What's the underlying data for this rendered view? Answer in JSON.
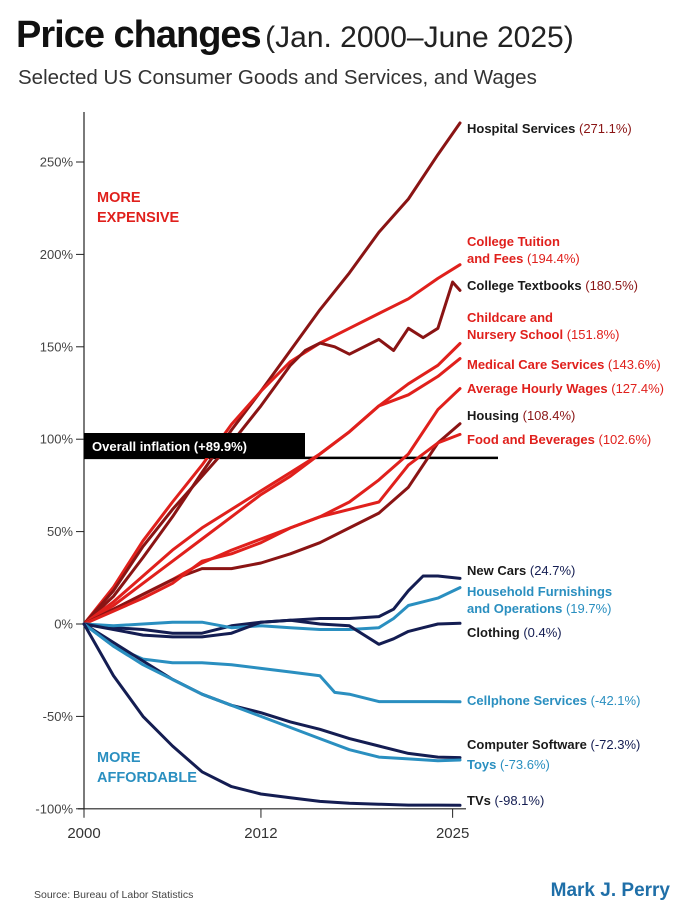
{
  "header": {
    "title": "Price changes",
    "title_period": "(Jan. 2000–June 2025)",
    "subtitle": "Selected US Consumer Goods and Services, and Wages"
  },
  "footer": {
    "source": "Source:  Bureau of Labor Statistics",
    "brand": "Mark J. Perry"
  },
  "colors": {
    "bright_red": "#e0201c",
    "dark_red": "#8a1414",
    "navy": "#141d52",
    "light_blue": "#2a8fc0",
    "axis": "#222222"
  },
  "chart_data": {
    "type": "line",
    "x_range": [
      2000,
      2025.5
    ],
    "xticks": [
      2000,
      2012,
      2025
    ],
    "ylim": [
      -100,
      280
    ],
    "yticks": [
      -100,
      -50,
      0,
      50,
      100,
      150,
      200,
      250
    ],
    "ytick_labels": [
      "-100%",
      "-50%",
      "0%",
      "50%",
      "100%",
      "150%",
      "200%",
      "250%"
    ],
    "grid": false,
    "annotations": {
      "more_expensive": [
        "MORE",
        "EXPENSIVE"
      ],
      "more_affordable": [
        "MORE",
        "AFFORDABLE"
      ],
      "overall_inflation_label": "Overall inflation (+89.9%)",
      "overall_inflation_value": 89.9
    },
    "series": [
      {
        "name": "Hospital Services",
        "value_label": "(271.1%)",
        "color": "dark_red",
        "x": [
          2000,
          2002,
          2004,
          2006,
          2008,
          2010,
          2012,
          2014,
          2016,
          2018,
          2020,
          2022,
          2024,
          2025.5
        ],
        "y": [
          0,
          15,
          36,
          58,
          82,
          105,
          126,
          148,
          170,
          190,
          212,
          230,
          254,
          271.1
        ]
      },
      {
        "name": "College Tuition and Fees",
        "value_label": "(194.4%)",
        "color": "bright_red",
        "x": [
          2000,
          2002,
          2004,
          2006,
          2008,
          2010,
          2012,
          2014,
          2016,
          2018,
          2020,
          2022,
          2024,
          2025.5
        ],
        "y": [
          0,
          20,
          45,
          66,
          86,
          108,
          126,
          142,
          152,
          160,
          168,
          176,
          187,
          194.4
        ]
      },
      {
        "name": "College Textbooks",
        "value_label": "(180.5%)",
        "color": "dark_red",
        "x": [
          2000,
          2002,
          2004,
          2006,
          2008,
          2010,
          2012,
          2014,
          2015,
          2016,
          2017,
          2018,
          2020,
          2021,
          2022,
          2023,
          2024,
          2025,
          2025.5
        ],
        "y": [
          0,
          18,
          42,
          62,
          80,
          98,
          118,
          140,
          148,
          152,
          150,
          146,
          154,
          148,
          160,
          155,
          160,
          185,
          180.5
        ]
      },
      {
        "name": "Childcare and Nursery School",
        "value_label": "(151.8%)",
        "color": "bright_red",
        "x": [
          2000,
          2002,
          2004,
          2006,
          2008,
          2010,
          2012,
          2014,
          2016,
          2018,
          2020,
          2022,
          2024,
          2025.5
        ],
        "y": [
          0,
          12,
          26,
          40,
          52,
          62,
          72,
          82,
          92,
          104,
          118,
          130,
          140,
          151.8
        ]
      },
      {
        "name": "Medical Care Services",
        "value_label": "(143.6%)",
        "color": "bright_red",
        "x": [
          2000,
          2002,
          2004,
          2006,
          2008,
          2010,
          2012,
          2014,
          2016,
          2018,
          2020,
          2022,
          2024,
          2025.5
        ],
        "y": [
          0,
          10,
          22,
          34,
          46,
          58,
          70,
          80,
          92,
          104,
          118,
          124,
          134,
          143.6
        ]
      },
      {
        "name": "Average Hourly Wages",
        "value_label": "(127.4%)",
        "color": "bright_red",
        "x": [
          2000,
          2002,
          2004,
          2006,
          2008,
          2010,
          2012,
          2014,
          2016,
          2018,
          2020,
          2022,
          2024,
          2025.5
        ],
        "y": [
          0,
          8,
          16,
          24,
          33,
          40,
          46,
          52,
          58,
          66,
          78,
          92,
          116,
          127.4
        ]
      },
      {
        "name": "Housing",
        "value_label": "(108.4%)",
        "color": "dark_red",
        "x": [
          2000,
          2002,
          2004,
          2006,
          2008,
          2010,
          2012,
          2014,
          2016,
          2018,
          2020,
          2022,
          2024,
          2025.5
        ],
        "y": [
          0,
          8,
          16,
          24,
          30,
          30,
          33,
          38,
          44,
          52,
          60,
          74,
          98,
          108.4
        ]
      },
      {
        "name": "Food and Beverages",
        "value_label": "(102.6%)",
        "color": "bright_red",
        "x": [
          2000,
          2002,
          2004,
          2006,
          2008,
          2010,
          2012,
          2014,
          2016,
          2018,
          2020,
          2022,
          2024,
          2025.5
        ],
        "y": [
          0,
          7,
          14,
          22,
          34,
          38,
          44,
          52,
          58,
          62,
          66,
          86,
          98,
          102.6
        ]
      },
      {
        "name": "New Cars",
        "value_label": "(24.7%)",
        "color": "navy",
        "x": [
          2000,
          2002,
          2004,
          2006,
          2008,
          2010,
          2012,
          2014,
          2016,
          2018,
          2020,
          2021,
          2022,
          2023,
          2024,
          2025.5
        ],
        "y": [
          0,
          -2,
          -3,
          -5,
          -5,
          -1,
          1,
          2,
          3,
          3,
          4,
          8,
          18,
          26,
          26,
          24.7
        ]
      },
      {
        "name": "Household Furnishings and Operations",
        "value_label": "(19.7%)",
        "color": "light_blue",
        "x": [
          2000,
          2002,
          2004,
          2006,
          2008,
          2010,
          2012,
          2014,
          2016,
          2018,
          2020,
          2021,
          2022,
          2023,
          2024,
          2025.5
        ],
        "y": [
          0,
          -1,
          0,
          1,
          1,
          -2,
          -1,
          -2,
          -3,
          -3,
          -2,
          3,
          10,
          12,
          14,
          19.7
        ]
      },
      {
        "name": "Clothing",
        "value_label": "(0.4%)",
        "color": "navy",
        "x": [
          2000,
          2002,
          2004,
          2006,
          2008,
          2010,
          2012,
          2014,
          2016,
          2018,
          2020,
          2021,
          2022,
          2023,
          2024,
          2025.5
        ],
        "y": [
          0,
          -3,
          -6,
          -7,
          -7,
          -5,
          1,
          2,
          0,
          -1,
          -11,
          -8,
          -4,
          -2,
          0,
          0.4
        ]
      },
      {
        "name": "Cellphone Services",
        "value_label": "(-42.1%)",
        "color": "light_blue",
        "x": [
          2000,
          2002,
          2004,
          2006,
          2008,
          2010,
          2012,
          2014,
          2016,
          2017,
          2018,
          2020,
          2022,
          2024,
          2025.5
        ],
        "y": [
          0,
          -12,
          -19,
          -21,
          -21,
          -22,
          -24,
          -26,
          -28,
          -37,
          -38,
          -42,
          -42,
          -42,
          -42.1
        ]
      },
      {
        "name": "Computer Software",
        "value_label": "(-72.3%)",
        "color": "navy",
        "x": [
          2000,
          2002,
          2004,
          2006,
          2008,
          2010,
          2012,
          2014,
          2016,
          2018,
          2020,
          2022,
          2024,
          2025.5
        ],
        "y": [
          0,
          -10,
          -20,
          -30,
          -38,
          -44,
          -48,
          -53,
          -57,
          -62,
          -66,
          -70,
          -72,
          -72.3
        ]
      },
      {
        "name": "Toys",
        "value_label": "(-73.6%)",
        "color": "light_blue",
        "x": [
          2000,
          2002,
          2004,
          2006,
          2008,
          2010,
          2012,
          2014,
          2016,
          2018,
          2020,
          2022,
          2024,
          2025.5
        ],
        "y": [
          0,
          -12,
          -22,
          -30,
          -38,
          -44,
          -50,
          -56,
          -62,
          -68,
          -72,
          -73,
          -74,
          -73.6
        ]
      },
      {
        "name": "TVs",
        "value_label": "(-98.1%)",
        "color": "navy",
        "x": [
          2000,
          2002,
          2004,
          2006,
          2008,
          2010,
          2012,
          2014,
          2016,
          2018,
          2020,
          2022,
          2024,
          2025.5
        ],
        "y": [
          0,
          -28,
          -50,
          -66,
          -80,
          -88,
          -92,
          -94,
          -96,
          -97,
          -97.5,
          -98,
          -98,
          -98.1
        ]
      }
    ]
  }
}
